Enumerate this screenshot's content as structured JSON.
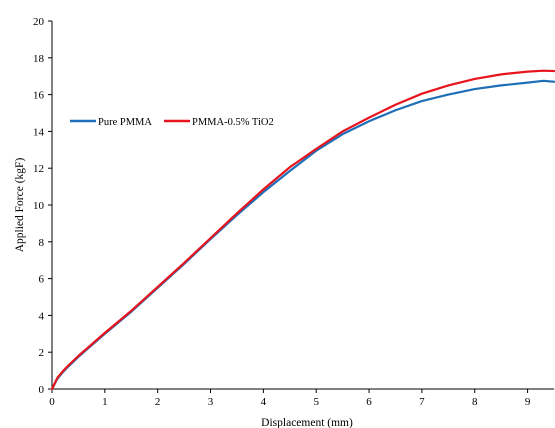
{
  "chart_data": {
    "type": "line",
    "title": "",
    "xlabel": "Displacement (mm)",
    "ylabel": "Applied Force (kgF)",
    "xlim": [
      0,
      9.5
    ],
    "ylim": [
      0,
      20
    ],
    "xticks": [
      0,
      1,
      2,
      3,
      4,
      5,
      6,
      7,
      8,
      9
    ],
    "yticks": [
      0,
      2,
      4,
      6,
      8,
      10,
      12,
      14,
      16,
      18,
      20
    ],
    "grid": false,
    "legend_position": "upper-left",
    "series": [
      {
        "name": "Pure PMMA",
        "color": "#1f6fb8",
        "x": [
          0,
          0.1,
          0.2,
          0.3,
          0.5,
          0.7,
          1.0,
          1.5,
          2.0,
          2.5,
          3.0,
          3.5,
          4.0,
          4.5,
          5.0,
          5.5,
          6.0,
          6.5,
          7.0,
          7.5,
          8.0,
          8.5,
          9.0,
          9.3,
          9.5
        ],
        "y": [
          0,
          0.55,
          0.9,
          1.2,
          1.75,
          2.25,
          3.0,
          4.2,
          5.5,
          6.8,
          8.15,
          9.45,
          10.7,
          11.85,
          12.95,
          13.85,
          14.55,
          15.15,
          15.65,
          16.0,
          16.3,
          16.5,
          16.65,
          16.75,
          16.7
        ]
      },
      {
        "name": "PMMA-0.5% TiO2",
        "color": "#e8141d",
        "x": [
          0,
          0.1,
          0.2,
          0.3,
          0.5,
          0.7,
          1.0,
          1.5,
          2.0,
          2.5,
          3.0,
          3.5,
          4.0,
          4.5,
          5.0,
          5.5,
          6.0,
          6.5,
          7.0,
          7.5,
          8.0,
          8.5,
          9.0,
          9.3,
          9.5
        ],
        "y": [
          0,
          0.6,
          0.95,
          1.25,
          1.8,
          2.3,
          3.05,
          4.25,
          5.55,
          6.85,
          8.2,
          9.55,
          10.85,
          12.05,
          13.05,
          14.0,
          14.75,
          15.45,
          16.05,
          16.5,
          16.85,
          17.1,
          17.25,
          17.3,
          17.28
        ]
      }
    ]
  }
}
